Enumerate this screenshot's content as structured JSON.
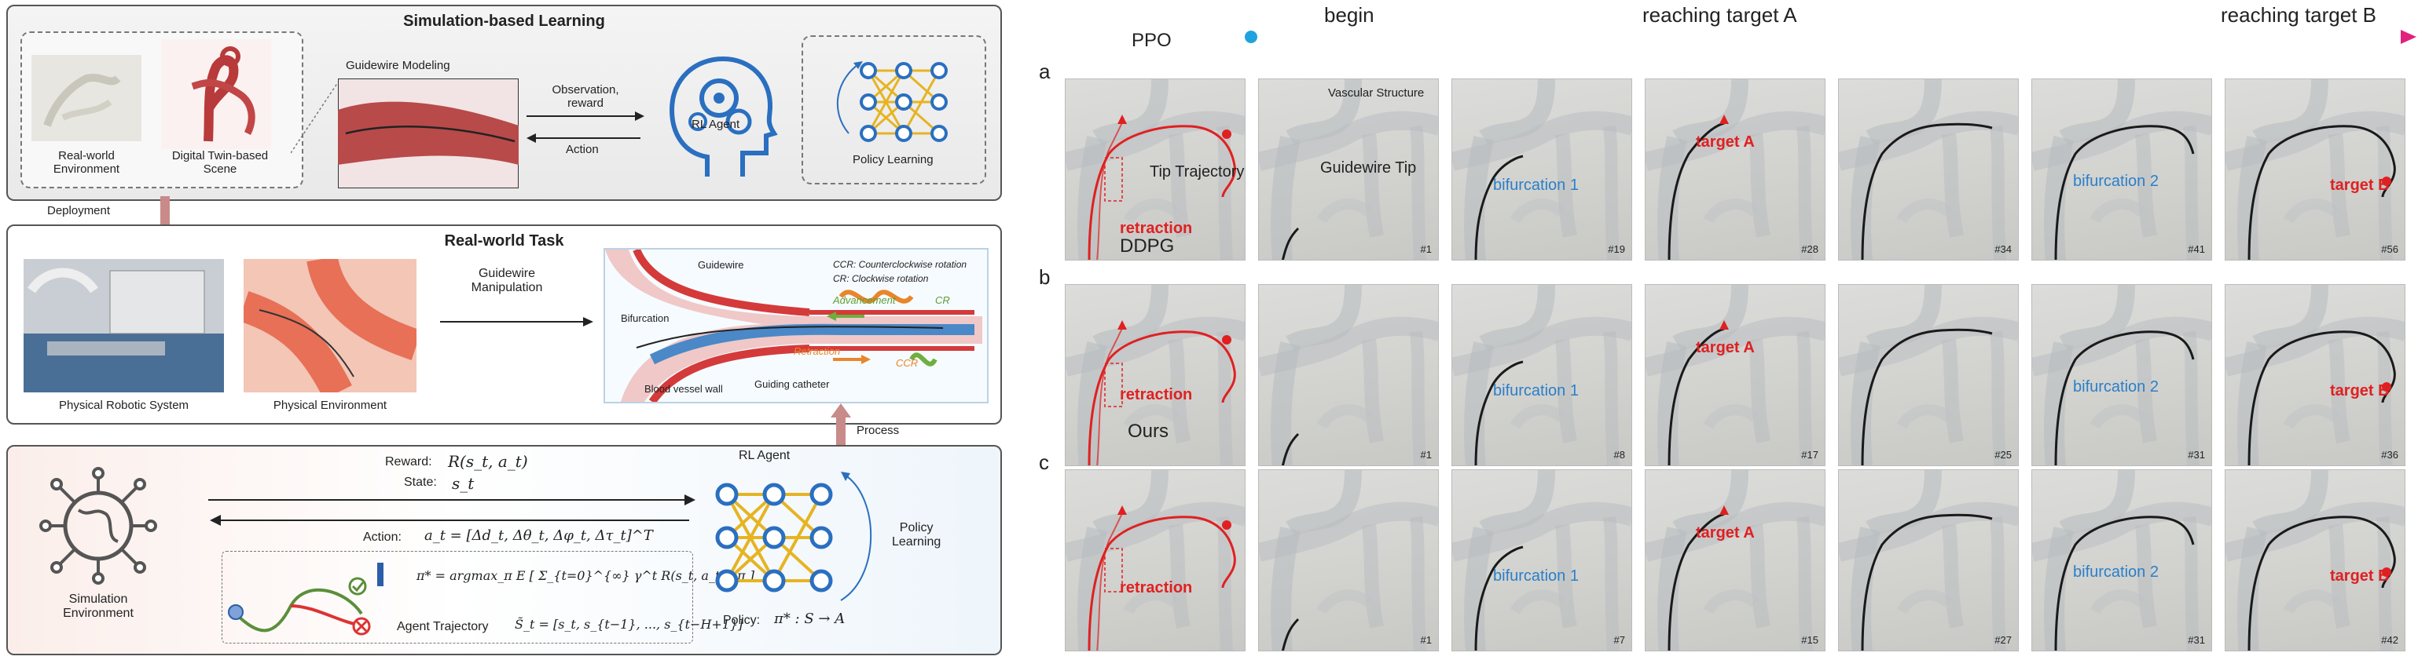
{
  "left": {
    "sim_title": "Simulation-based Learning",
    "real_world_env": "Real-world\nEnvironment",
    "digital_twin": "Digital Twin-based\nScene",
    "guidewire_modeling": "Guidewire Modeling",
    "observation_reward": "Observation,\nreward",
    "action": "Action",
    "rl_agent": "RL Agent",
    "policy_learning": "Policy Learning",
    "deployment": "Deployment",
    "real_task_title": "Real-world Task",
    "physical_robotic_system": "Physical Robotic System",
    "physical_environment": "Physical Environment",
    "guidewire_manipulation": "Guidewire\nManipulation",
    "schema": {
      "guidewire": "Guidewire",
      "bifurcation": "Bifurcation",
      "blood_vessel_wall": "Blood vessel wall",
      "guiding_catheter": "Guiding catheter",
      "ccr_def": "CCR: Counterclockwise rotation",
      "cr_def": "CR: Clockwise rotation",
      "advancement": "Advancement",
      "retraction": "Retraction",
      "ccr": "CCR",
      "cr": "CR"
    },
    "process": "Process",
    "bottom": {
      "rl_agent": "RL Agent",
      "reward_label": "Reward:",
      "reward_expr": "R(s_t, a_t)",
      "state_label": "State:",
      "state_expr": "s_t",
      "action_label": "Action:",
      "action_expr": "a_t = [Δd_t, Δθ_t, Δφ_t, Δτ_t]^T",
      "policy_eq": "π* = argmax_π E [ Σ_{t=0}^{∞} γ^t R(s_t, a_t) | π ]",
      "agent_trajectory": "Agent Trajectory",
      "trajectory_expr": "S̃_t = [s_t, s_{t−1}, ..., s_{t−H+1}]",
      "simulation_env": "Simulation\nEnvironment",
      "policy_label": "Policy:",
      "policy_expr": "π* : S → A",
      "policy_learning": "Policy\nLearning"
    }
  },
  "right": {
    "timeline": {
      "begin": "begin",
      "reaching_a": "reaching target A",
      "reaching_b": "reaching target B",
      "color_start": "#1fa3e0",
      "color_end": "#e0217e"
    },
    "rows": [
      {
        "letter": "a",
        "method": "PPO",
        "frames": [
          "",
          "#1",
          "#19",
          "#28",
          "#34",
          "#41",
          "#56"
        ],
        "labels": {
          "retraction": "retraction",
          "tip_trajectory": "Tip Trajectory",
          "vascular_structure": "Vascular Structure",
          "guidewire_tip": "Guidewire Tip",
          "bifurcation1": "bifurcation 1",
          "targetA": "target A",
          "bifurcation2": "bifurcation 2",
          "targetB": "target B"
        }
      },
      {
        "letter": "b",
        "method": "DDPG",
        "frames": [
          "",
          "#1",
          "#8",
          "#17",
          "#25",
          "#31",
          "#36"
        ],
        "labels": {
          "retraction": "retraction",
          "bifurcation1": "bifurcation 1",
          "targetA": "target A",
          "bifurcation2": "bifurcation 2",
          "targetB": "target B"
        }
      },
      {
        "letter": "c",
        "method": "Ours",
        "frames": [
          "",
          "#1",
          "#7",
          "#15",
          "#27",
          "#31",
          "#42"
        ],
        "labels": {
          "retraction": "retraction",
          "bifurcation1": "bifurcation 1",
          "targetA": "target A",
          "bifurcation2": "bifurcation 2",
          "targetB": "target B"
        }
      }
    ]
  }
}
